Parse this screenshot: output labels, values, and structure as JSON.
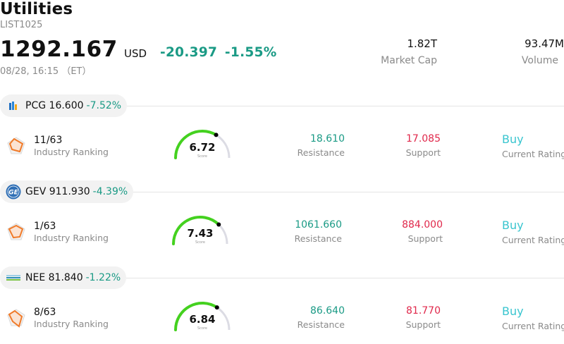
{
  "header": {
    "title": "Utilities",
    "code": "LIST1025",
    "price": "1292.167",
    "currency": "USD",
    "change": "-20.397",
    "change_pct": "-1.55%",
    "datetime": "08/28, 16:15 （ET）"
  },
  "stats": {
    "market_cap_value": "1.82T",
    "market_cap_label": "Market Cap",
    "volume_value": "93.47M",
    "volume_label": "Volume"
  },
  "labels": {
    "industry_ranking": "Industry Ranking",
    "resistance": "Resistance",
    "support": "Support",
    "current_rating": "Current Rating",
    "score": "Score"
  },
  "stocks": [
    {
      "symbol": "PCG",
      "price": "16.600",
      "pct": "-7.52%",
      "rank": "11/63",
      "score": "6.72",
      "score_value": 6.72,
      "resistance": "18.610",
      "support": "17.085",
      "rating": "Buy",
      "logo_icon": "pcg-logo-icon"
    },
    {
      "symbol": "GEV",
      "price": "911.930",
      "pct": "-4.39%",
      "rank": "1/63",
      "score": "7.43",
      "score_value": 7.43,
      "resistance": "1061.660",
      "support": "884.000",
      "rating": "Buy",
      "logo_icon": "ge-logo-icon"
    },
    {
      "symbol": "NEE",
      "price": "81.840",
      "pct": "-1.22%",
      "rank": "8/63",
      "score": "6.84",
      "score_value": 6.84,
      "resistance": "86.640",
      "support": "81.770",
      "rating": "Buy",
      "logo_icon": "nee-logo-icon"
    }
  ],
  "colors": {
    "positive_green": "#1a9a85",
    "support_red": "#e0284b",
    "rating_cyan": "#39c5cf",
    "gauge_green": "#44d11f",
    "gauge_track": "#dcdce4"
  }
}
